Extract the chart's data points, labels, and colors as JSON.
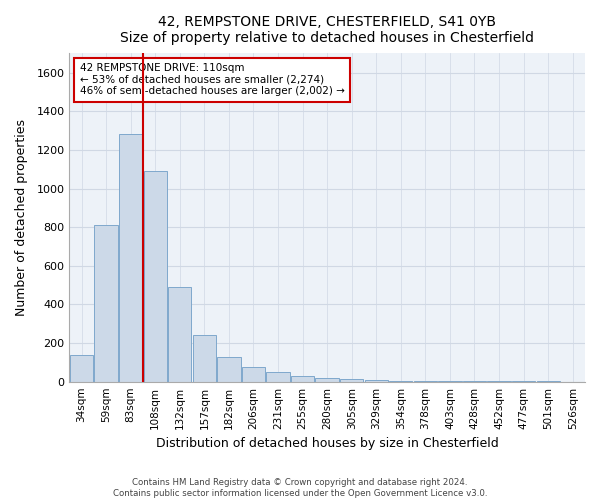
{
  "title": "42, REMPSTONE DRIVE, CHESTERFIELD, S41 0YB",
  "subtitle": "Size of property relative to detached houses in Chesterfield",
  "xlabel": "Distribution of detached houses by size in Chesterfield",
  "ylabel": "Number of detached properties",
  "bar_color": "#ccd9e8",
  "bar_edge_color": "#7fa8cc",
  "bins": [
    "34sqm",
    "59sqm",
    "83sqm",
    "108sqm",
    "132sqm",
    "157sqm",
    "182sqm",
    "206sqm",
    "231sqm",
    "255sqm",
    "280sqm",
    "305sqm",
    "329sqm",
    "354sqm",
    "378sqm",
    "403sqm",
    "428sqm",
    "452sqm",
    "477sqm",
    "501sqm",
    "526sqm"
  ],
  "values": [
    140,
    810,
    1280,
    1090,
    490,
    240,
    128,
    75,
    48,
    28,
    18,
    12,
    8,
    5,
    3,
    2,
    2,
    1,
    1,
    1,
    0
  ],
  "ylim": [
    0,
    1700
  ],
  "yticks": [
    0,
    200,
    400,
    600,
    800,
    1000,
    1200,
    1400,
    1600
  ],
  "vline_color": "#cc0000",
  "annotation_line1": "42 REMPSTONE DRIVE: 110sqm",
  "annotation_line2": "← 53% of detached houses are smaller (2,274)",
  "annotation_line3": "46% of semi-detached houses are larger (2,002) →",
  "annotation_box_color": "#ffffff",
  "annotation_box_edge": "#cc0000",
  "footer1": "Contains HM Land Registry data © Crown copyright and database right 2024.",
  "footer2": "Contains public sector information licensed under the Open Government Licence v3.0.",
  "background_color": "#edf2f8",
  "plot_background": "#ffffff",
  "grid_color": "#d0d8e4"
}
